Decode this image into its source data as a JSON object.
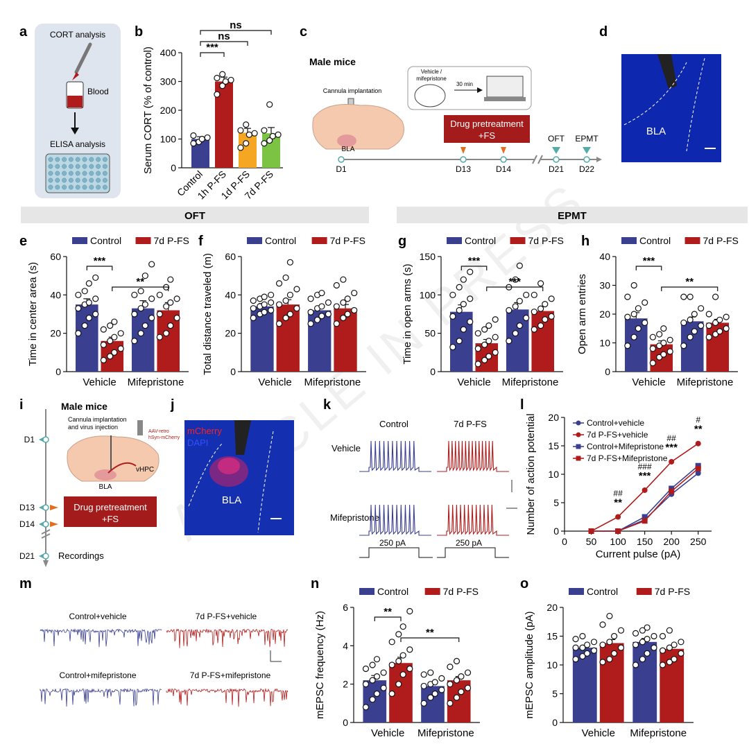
{
  "panel_letters": [
    "a",
    "b",
    "c",
    "d",
    "e",
    "f",
    "g",
    "h",
    "i",
    "j",
    "k",
    "l",
    "m",
    "n",
    "o"
  ],
  "section_headers": {
    "oft": "OFT",
    "epmt": "EPMT"
  },
  "watermark": "ARTICLE IN PRESS",
  "colors": {
    "control": "#3a3f8f",
    "pfs": "#b01c1c",
    "orange": "#f5a623",
    "green": "#7cc243",
    "bla_blue": "#1030c8",
    "header_gray": "#e6e6e6"
  },
  "panel_a": {
    "top_label": "CORT analysis",
    "blood": "Blood",
    "bottom_label": "ELISA analysis"
  },
  "panel_c": {
    "title": "Male mice",
    "cannula": "Cannula implantation",
    "region": "BLA",
    "vehicle": "Vehicle /",
    "mifepristone": "mifepristone",
    "interval": "30 min",
    "drug_box_line1": "Drug pretreatment",
    "drug_box_line2": "+FS",
    "tests": [
      "OFT",
      "EPMT"
    ],
    "days": [
      "D1",
      "D13",
      "D14",
      "D21",
      "D22"
    ]
  },
  "panel_d": {
    "region": "BLA"
  },
  "panel_i": {
    "title": "Male mice",
    "surgery_line1": "Cannula implantation",
    "surgery_line2": "and virus injection",
    "virus_line1": "AAV-retro",
    "virus_line2": "hSyn-mCherry",
    "region_a": "BLA",
    "region_b": "vHPC",
    "drug_box_line1": "Drug pretreatment",
    "drug_box_line2": "+FS",
    "days": [
      "D1",
      "D13",
      "D14",
      "D21"
    ],
    "recordings": "Recordings"
  },
  "panel_j": {
    "label_red": "mCherry",
    "label_blue": "DAPI",
    "region": "BLA"
  },
  "panel_k": {
    "col_labels": [
      "Control",
      "7d P-FS"
    ],
    "row_labels": [
      "Vehicle",
      "Mifepristone"
    ],
    "pulse": "250 pA"
  },
  "panel_m": {
    "labels": [
      "Control+vehicle",
      "7d P-FS+vehicle",
      "Control+mifepristone",
      "7d P-FS+mifepristone"
    ]
  },
  "chart_data": [
    {
      "panel": "b",
      "type": "bar",
      "ylabel": "Serum CORT (% of control)",
      "ylim": [
        0,
        400
      ],
      "yticks": [
        0,
        100,
        200,
        300,
        400
      ],
      "categories": [
        "Control",
        "1h P-FS",
        "1d P-FS",
        "7d P-FS"
      ],
      "values": [
        100,
        300,
        122,
        120
      ],
      "sem": [
        8,
        15,
        15,
        20
      ],
      "points": [
        [
          85,
          90,
          100,
          105,
          112
        ],
        [
          255,
          285,
          300,
          305,
          312,
          325
        ],
        [
          70,
          85,
          115,
          120,
          130,
          150
        ],
        [
          85,
          95,
          110,
          115,
          130,
          220
        ]
      ],
      "colors": [
        "#3a3f8f",
        "#b01c1c",
        "#f5a623",
        "#7cc243"
      ],
      "significance": [
        {
          "label": "***",
          "from": 0,
          "to": 1
        },
        {
          "label": "ns",
          "from": 0,
          "to": 2
        },
        {
          "label": "ns",
          "from": 0,
          "to": 3
        }
      ]
    },
    {
      "panel": "e",
      "type": "grouped_bar",
      "ylabel": "Time in center area (s)",
      "ylim": [
        0,
        60
      ],
      "yticks": [
        0,
        20,
        40,
        60
      ],
      "groups": [
        "Vehicle",
        "Mifepristone"
      ],
      "legend": [
        "Control",
        "7d P-FS"
      ],
      "series": [
        {
          "name": "Control",
          "values": [
            35,
            33
          ],
          "sem": [
            3,
            4
          ],
          "points": [
            [
              20,
              24,
              28,
              30,
              33,
              35,
              36,
              38,
              40,
              42,
              46,
              49
            ],
            [
              16,
              20,
              24,
              28,
              30,
              33,
              35,
              38,
              40,
              42,
              50,
              56
            ]
          ]
        },
        {
          "name": "7d P-FS",
          "values": [
            16,
            32
          ],
          "sem": [
            2,
            4
          ],
          "points": [
            [
              6,
              8,
              10,
              12,
              14,
              16,
              18,
              20,
              22,
              24,
              26
            ],
            [
              18,
              20,
              24,
              28,
              30,
              34,
              36,
              38,
              40,
              44,
              48
            ]
          ]
        }
      ],
      "significance": [
        {
          "label": "***",
          "from": [
            0,
            0
          ],
          "to": [
            0,
            1
          ]
        },
        {
          "label": "**",
          "from": [
            0,
            1
          ],
          "to": [
            1,
            1
          ]
        }
      ]
    },
    {
      "panel": "f",
      "type": "grouped_bar",
      "ylabel": "Total distance traveled (m)",
      "ylim": [
        0,
        60
      ],
      "yticks": [
        0,
        20,
        40,
        60
      ],
      "groups": [
        "Vehicle",
        "Mifepristone"
      ],
      "legend": [
        "Control",
        "7d P-FS"
      ],
      "series": [
        {
          "name": "Control",
          "values": [
            34,
            32
          ],
          "sem": [
            1.5,
            2
          ],
          "points": [
            [
              28,
              30,
              31,
              32,
              33,
              34,
              35,
              36,
              37,
              38,
              39,
              40
            ],
            [
              25,
              27,
              29,
              30,
              31,
              33,
              34,
              36,
              38,
              40,
              41
            ]
          ]
        },
        {
          "name": "7d P-FS",
          "values": [
            35,
            33
          ],
          "sem": [
            2.5,
            2
          ],
          "points": [
            [
              25,
              28,
              30,
              33,
              35,
              37,
              40,
              43,
              46,
              49,
              57
            ],
            [
              25,
              28,
              30,
              32,
              34,
              36,
              38,
              41,
              45,
              48
            ]
          ]
        }
      ],
      "significance": []
    },
    {
      "panel": "g",
      "type": "grouped_bar",
      "ylabel": "Time in open arms (s)",
      "ylim": [
        0,
        150
      ],
      "yticks": [
        0,
        50,
        100,
        150
      ],
      "groups": [
        "Vehicle",
        "Mifepristone"
      ],
      "legend": [
        "Control",
        "7d P-FS"
      ],
      "series": [
        {
          "name": "Control",
          "values": [
            78,
            81
          ],
          "sem": [
            9,
            9
          ],
          "points": [
            [
              32,
              40,
              55,
              65,
              72,
              80,
              88,
              95,
              100,
              110,
              120,
              130
            ],
            [
              40,
              50,
              60,
              70,
              80,
              85,
              92,
              100,
              110,
              120,
              138
            ]
          ]
        },
        {
          "name": "7d P-FS",
          "values": [
            37,
            79
          ],
          "sem": [
            5,
            6
          ],
          "points": [
            [
              10,
              15,
              20,
              25,
              30,
              35,
              40,
              45,
              50,
              55,
              60,
              68
            ],
            [
              55,
              60,
              68,
              72,
              78,
              82,
              88,
              95,
              100,
              115
            ]
          ]
        }
      ],
      "significance": [
        {
          "label": "***",
          "from": [
            0,
            0
          ],
          "to": [
            0,
            1
          ]
        },
        {
          "label": "***",
          "from": [
            0,
            1
          ],
          "to": [
            1,
            1
          ]
        }
      ]
    },
    {
      "panel": "h",
      "type": "grouped_bar",
      "ylabel": "Open arm entries",
      "ylim": [
        0,
        40
      ],
      "yticks": [
        0,
        10,
        20,
        30,
        40
      ],
      "groups": [
        "Vehicle",
        "Mifepristone"
      ],
      "legend": [
        "Control",
        "7d P-FS"
      ],
      "series": [
        {
          "name": "Control",
          "values": [
            18.5,
            17.5
          ],
          "sem": [
            2,
            1.5
          ],
          "points": [
            [
              9,
              12,
              15,
              17,
              19,
              20,
              22,
              24,
              26,
              30
            ],
            [
              9,
              12,
              14,
              16,
              17,
              18,
              20,
              22,
              26,
              26
            ]
          ]
        },
        {
          "name": "7d P-FS",
          "values": [
            9.5,
            17
          ],
          "sem": [
            1.2,
            1.2
          ],
          "points": [
            [
              3,
              5,
              6,
              7,
              8,
              9,
              10,
              11,
              12,
              13,
              15
            ],
            [
              12,
              13,
              14,
              15,
              16,
              17,
              18,
              19,
              20,
              26
            ]
          ]
        }
      ],
      "significance": [
        {
          "label": "***",
          "from": [
            0,
            0
          ],
          "to": [
            0,
            1
          ]
        },
        {
          "label": "**",
          "from": [
            0,
            1
          ],
          "to": [
            1,
            1
          ]
        }
      ]
    },
    {
      "panel": "l",
      "type": "line",
      "xlabel": "Current pulse (pA)",
      "ylabel": "Number of action potential",
      "x": [
        50,
        100,
        150,
        200,
        250
      ],
      "xticks": [
        0,
        50,
        100,
        150,
        200,
        250
      ],
      "xlim": [
        0,
        275
      ],
      "ylim": [
        0,
        20
      ],
      "yticks": [
        0,
        5,
        10,
        15,
        20
      ],
      "series": [
        {
          "name": "Control+vehicle",
          "values": [
            0,
            0,
            2,
            6.5,
            10.2
          ],
          "color": "#3a3f8f",
          "marker": "circle"
        },
        {
          "name": "7d P-FS+vehicle",
          "values": [
            0,
            2.5,
            7.2,
            12.2,
            15.4
          ],
          "color": "#b01c1c",
          "marker": "circle"
        },
        {
          "name": "Control+Mifepristone",
          "values": [
            0,
            0,
            2.5,
            7.5,
            11.5
          ],
          "color": "#3a3f8f",
          "marker": "square"
        },
        {
          "name": "7d P-FS+Mifepristone",
          "values": [
            0,
            0,
            1.8,
            7,
            11
          ],
          "color": "#b01c1c",
          "marker": "square"
        }
      ],
      "annotations": [
        {
          "x": 100,
          "lines": [
            "##",
            "**"
          ]
        },
        {
          "x": 150,
          "lines": [
            "###",
            "***"
          ]
        },
        {
          "x": 200,
          "lines": [
            "##",
            "***"
          ]
        },
        {
          "x": 250,
          "lines": [
            "#",
            "**"
          ]
        }
      ]
    },
    {
      "panel": "n",
      "type": "grouped_bar",
      "ylabel": "mEPSC frequency (Hz)",
      "ylim": [
        0,
        6
      ],
      "yticks": [
        0,
        2,
        4,
        6
      ],
      "groups": [
        "Vehicle",
        "Mifepristone"
      ],
      "legend": [
        "Control",
        "7d P-FS"
      ],
      "series": [
        {
          "name": "Control",
          "values": [
            2.2,
            1.9
          ],
          "sem": [
            0.25,
            0.15
          ],
          "points": [
            [
              0.8,
              1.2,
              1.5,
              1.8,
              2.0,
              2.2,
              2.4,
              2.6,
              2.8,
              3.0,
              3.3
            ],
            [
              1.0,
              1.3,
              1.5,
              1.7,
              1.9,
              2.0,
              2.1,
              2.3,
              2.5,
              2.6
            ]
          ]
        },
        {
          "name": "7d P-FS",
          "values": [
            3.1,
            2.2
          ],
          "sem": [
            0.3,
            0.2
          ],
          "points": [
            [
              1.5,
              2.0,
              2.5,
              2.8,
              3.0,
              3.2,
              3.5,
              3.8,
              4.2,
              4.6,
              5.0,
              5.8
            ],
            [
              1.0,
              1.3,
              1.6,
              1.8,
              2.0,
              2.2,
              2.4,
              2.6,
              2.9,
              3.2
            ]
          ]
        }
      ],
      "significance": [
        {
          "label": "**",
          "from": [
            0,
            0
          ],
          "to": [
            0,
            1
          ]
        },
        {
          "label": "**",
          "from": [
            0,
            1
          ],
          "to": [
            1,
            1
          ]
        }
      ]
    },
    {
      "panel": "o",
      "type": "grouped_bar",
      "ylabel": "mEPSC amplitude (pA)",
      "ylim": [
        0,
        20
      ],
      "yticks": [
        0,
        5,
        10,
        15,
        20
      ],
      "groups": [
        "Vehicle",
        "Mifepristone"
      ],
      "legend": [
        "Control",
        "7d P-FS"
      ],
      "series": [
        {
          "name": "Control",
          "values": [
            13,
            14
          ],
          "sem": [
            0.4,
            0.6
          ],
          "points": [
            [
              11,
              11.5,
              12,
              12.5,
              13,
              13,
              13.5,
              14,
              14.5,
              15
            ],
            [
              10,
              11,
              12,
              13,
              13.5,
              14,
              14.5,
              15,
              15.5,
              16,
              16.5
            ]
          ]
        },
        {
          "name": "7d P-FS",
          "values": [
            13.8,
            12.8
          ],
          "sem": [
            0.6,
            0.5
          ],
          "points": [
            [
              10.5,
              11,
              12,
              13,
              13.5,
              14,
              15,
              16,
              17,
              18.5
            ],
            [
              10,
              10.5,
              11,
              12,
              12.5,
              13,
              13.5,
              14,
              15,
              16
            ]
          ]
        }
      ],
      "significance": []
    }
  ]
}
